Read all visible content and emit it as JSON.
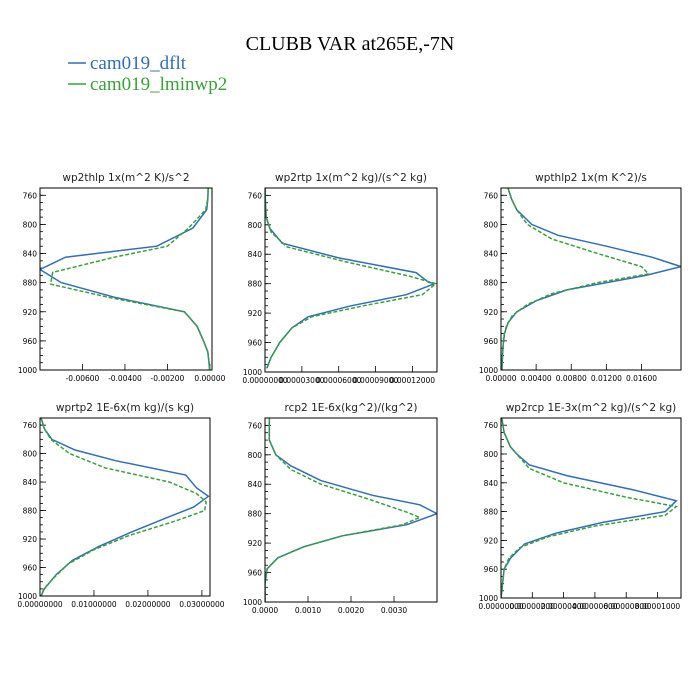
{
  "title": "CLUBB VAR at265E,-7N",
  "colors": {
    "dflt": "#2f6fb5",
    "lminwp2": "#3aa13a"
  },
  "legend": [
    {
      "name": "cam019_dflt",
      "color": "#2f6fb5",
      "dash": ""
    },
    {
      "name": "cam019_lminwp2",
      "color": "#3aa13a",
      "dash": "4,2"
    }
  ],
  "chart_data": [
    {
      "type": "line",
      "title": "wp2thlp   1x(m^2 K)/s^2",
      "xlim": [
        -0.008,
        0.0001
      ],
      "ylim": [
        1000,
        750
      ],
      "xticks": [
        -0.006,
        -0.004,
        -0.002,
        0.0
      ],
      "xtick_labels": [
        "-0.00600",
        "-0.00400",
        "-0.00200",
        "0.00000"
      ],
      "yticks": [
        760,
        800,
        840,
        880,
        920,
        960,
        1000
      ],
      "series": [
        {
          "name": "cam019_dflt",
          "y": [
            750,
            765,
            780,
            805,
            830,
            845,
            862,
            880,
            900,
            920,
            940,
            960,
            975,
            990,
            1000
          ],
          "x": [
            -8e-05,
            -0.0001,
            -0.00015,
            -0.0008,
            -0.0025,
            -0.0068,
            -0.008,
            -0.007,
            -0.0045,
            -0.0012,
            -0.0006,
            -0.0003,
            -0.0001,
            -4e-05,
            -1e-05
          ]
        },
        {
          "name": "cam019_lminwp2",
          "y": [
            750,
            765,
            780,
            805,
            830,
            845,
            866,
            882,
            900,
            920,
            940,
            960,
            975,
            990,
            1000
          ],
          "x": [
            -8e-05,
            -0.0001,
            -0.0002,
            -0.001,
            -0.002,
            -0.0045,
            -0.0074,
            -0.0075,
            -0.0048,
            -0.0012,
            -0.0006,
            -0.0003,
            -0.0001,
            -4e-05,
            -1e-05
          ]
        }
      ]
    },
    {
      "type": "line",
      "title": "wp2rtp   1x(m^2 kg)/(s^2 kg)",
      "xlim": [
        0.0,
        0.00014
      ],
      "ylim": [
        1000,
        750
      ],
      "xticks": [
        0.0,
        3e-05,
        6e-05,
        9e-05,
        0.00012
      ],
      "xtick_labels": [
        "0.00000000",
        "0.00003000",
        "0.00006000",
        "0.00009000",
        "0.00012000"
      ],
      "yticks": [
        760,
        800,
        840,
        880,
        920,
        960,
        1000
      ],
      "series": [
        {
          "name": "cam019_dflt",
          "y": [
            750,
            770,
            790,
            805,
            825,
            845,
            865,
            878,
            880,
            895,
            910,
            925,
            940,
            960,
            980,
            995
          ],
          "x": [
            0.0,
            3e-07,
            1e-06,
            4e-06,
            1.4e-05,
            6e-05,
            0.000123,
            0.000133,
            0.000138,
            0.000115,
            7e-05,
            3.5e-05,
            2.2e-05,
            1.2e-05,
            5e-06,
            1.5e-06
          ]
        },
        {
          "name": "cam019_lminwp2",
          "y": [
            750,
            770,
            790,
            810,
            830,
            850,
            870,
            880,
            895,
            910,
            925,
            940,
            960,
            980,
            995
          ],
          "x": [
            0.0,
            3e-07,
            1e-06,
            5e-06,
            1.8e-05,
            6.5e-05,
            0.000118,
            0.000139,
            0.000128,
            8e-05,
            3.8e-05,
            2.2e-05,
            1.2e-05,
            5e-06,
            1.5e-06
          ]
        }
      ]
    },
    {
      "type": "line",
      "title": "wpthlp2   1x(m K^2)/s",
      "xlim": [
        0.0,
        0.0205
      ],
      "ylim": [
        1000,
        750
      ],
      "xticks": [
        0.0,
        0.004,
        0.008,
        0.012,
        0.016
      ],
      "xtick_labels": [
        "0.00000",
        "0.00400",
        "0.00800",
        "0.01200",
        "0.01600"
      ],
      "yticks": [
        760,
        800,
        840,
        880,
        920,
        960,
        1000
      ],
      "series": [
        {
          "name": "cam019_dflt",
          "y": [
            750,
            765,
            780,
            800,
            815,
            830,
            845,
            858,
            870,
            890,
            905,
            920,
            935,
            950,
            970,
            1000
          ],
          "x": [
            0.0008,
            0.0012,
            0.0018,
            0.0035,
            0.0065,
            0.012,
            0.0172,
            0.0205,
            0.0165,
            0.0075,
            0.004,
            0.0018,
            0.0008,
            0.0004,
            0.0002,
            0.0001
          ]
        },
        {
          "name": "cam019_lminwp2",
          "y": [
            750,
            765,
            780,
            800,
            820,
            840,
            858,
            868,
            880,
            895,
            910,
            925,
            940,
            955,
            975,
            1000
          ],
          "x": [
            0.0008,
            0.0012,
            0.0018,
            0.003,
            0.0058,
            0.011,
            0.016,
            0.0168,
            0.011,
            0.0058,
            0.003,
            0.0013,
            0.0006,
            0.0003,
            0.0002,
            0.0001
          ]
        }
      ]
    },
    {
      "type": "line",
      "title": "wprtp2   1E-6x(m kg)/(s kg)",
      "xlim": [
        0.0,
        0.0315
      ],
      "ylim": [
        1000,
        750
      ],
      "xticks": [
        0.0,
        0.01,
        0.02,
        0.03
      ],
      "xtick_labels": [
        "0.00000000",
        "0.01000000",
        "0.02000000",
        "0.03000000"
      ],
      "yticks": [
        760,
        800,
        840,
        880,
        920,
        960,
        1000
      ],
      "series": [
        {
          "name": "cam019_dflt",
          "y": [
            750,
            765,
            780,
            795,
            810,
            830,
            848,
            860,
            875,
            890,
            910,
            930,
            950,
            970,
            990,
            1000
          ],
          "x": [
            0.0002,
            0.0008,
            0.0022,
            0.0065,
            0.014,
            0.027,
            0.029,
            0.0312,
            0.0285,
            0.0235,
            0.017,
            0.011,
            0.006,
            0.003,
            0.0008,
            0.0002
          ]
        },
        {
          "name": "cam019_lminwp2",
          "y": [
            750,
            765,
            780,
            800,
            820,
            840,
            856,
            868,
            880,
            895,
            915,
            935,
            955,
            975,
            990,
            1000
          ],
          "x": [
            0.0002,
            0.0008,
            0.002,
            0.0055,
            0.012,
            0.024,
            0.029,
            0.0308,
            0.0305,
            0.025,
            0.0165,
            0.01,
            0.0052,
            0.0025,
            0.0007,
            0.0002
          ]
        }
      ]
    },
    {
      "type": "line",
      "title": "rcp2   1E-6x(kg^2)/(kg^2)",
      "xlim": [
        0.0,
        0.004
      ],
      "ylim": [
        1000,
        750
      ],
      "xticks": [
        0.0,
        0.001,
        0.002,
        0.003
      ],
      "xtick_labels": [
        "0.0000",
        "0.0010",
        "0.0020",
        "0.0030"
      ],
      "yticks": [
        760,
        800,
        840,
        880,
        920,
        960,
        1000
      ],
      "series": [
        {
          "name": "cam019_dflt",
          "y": [
            750,
            780,
            800,
            815,
            835,
            855,
            868,
            880,
            895,
            910,
            925,
            940,
            955,
            975,
            1000
          ],
          "x": [
            0.0001,
            0.0001,
            0.00025,
            0.0006,
            0.0013,
            0.0025,
            0.0036,
            0.004,
            0.0033,
            0.0018,
            0.0009,
            0.0003,
            5e-05,
            0.0,
            0.0
          ]
        },
        {
          "name": "cam019_lminwp2",
          "y": [
            750,
            780,
            800,
            820,
            840,
            860,
            878,
            885,
            895,
            910,
            925,
            940,
            955,
            975,
            1000
          ],
          "x": [
            0.0001,
            0.0001,
            0.00025,
            0.0006,
            0.0013,
            0.0024,
            0.0033,
            0.0036,
            0.0032,
            0.0018,
            0.0009,
            0.0003,
            5e-05,
            0.0,
            0.0
          ]
        }
      ]
    },
    {
      "type": "line",
      "title": "wp2rcp   1E-3x(m^2 kg)/(s^2 kg)",
      "xlim": [
        0.0,
        1.15e-05
      ],
      "ylim": [
        1000,
        750
      ],
      "xticks": [
        0.0,
        2e-06,
        4e-06,
        6e-06,
        8e-06,
        1e-05
      ],
      "xtick_labels": [
        "0.00000000",
        "0.00000200",
        "0.00000400",
        "0.00000600",
        "0.00000800",
        "0.00001000"
      ],
      "yticks": [
        760,
        800,
        840,
        880,
        920,
        960,
        1000
      ],
      "series": [
        {
          "name": "cam019_dflt",
          "y": [
            750,
            770,
            790,
            800,
            815,
            830,
            850,
            865,
            880,
            895,
            910,
            925,
            945,
            960,
            980,
            1000
          ],
          "x": [
            5e-08,
            2e-07,
            6e-07,
            1e-06,
            1.8e-06,
            4.2e-06,
            8.5e-06,
            1.12e-05,
            1.05e-05,
            6.5e-06,
            3.5e-06,
            1.5e-06,
            6e-07,
            2e-07,
            1e-07,
            0.0
          ]
        },
        {
          "name": "cam019_lminwp2",
          "y": [
            750,
            770,
            790,
            800,
            820,
            840,
            860,
            873,
            885,
            900,
            915,
            930,
            945,
            960,
            980,
            1000
          ],
          "x": [
            5e-08,
            2e-07,
            6e-07,
            1e-06,
            1.8e-06,
            4e-06,
            8e-06,
            1.12e-05,
            1.05e-05,
            6e-06,
            3e-06,
            1.2e-06,
            5e-07,
            2e-07,
            1e-07,
            0.0
          ]
        }
      ]
    }
  ]
}
